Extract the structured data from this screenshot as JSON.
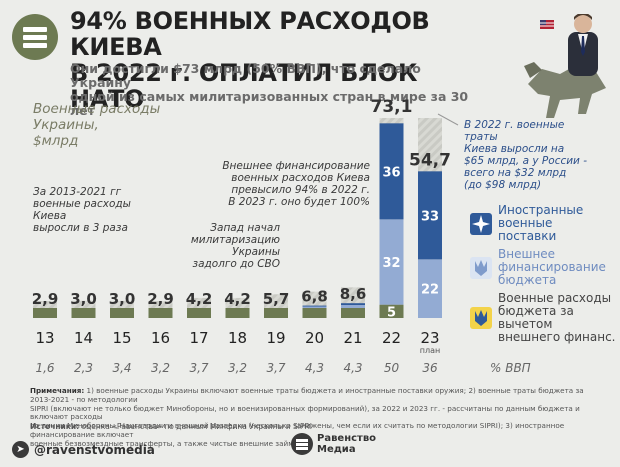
{
  "header": {
    "title_line1": "94% ВОЕННЫХ РАСХОДОВ КИЕВА",
    "title_line2": "В 2022 г. ОПЛАТИЛ БЛОК НАТО",
    "subtitle_line1": "Они достигли $73 млрд (50% ВВП), что сделало Украину",
    "subtitle_line2": "одной из самых милитаризованных стран в мире за 30 лет"
  },
  "colors": {
    "nato": "#2f5a99",
    "external": "#93abd3",
    "domestic": "#6d7a52",
    "stripe": "#c9cac4",
    "accent_text": "#2c4f8a"
  },
  "annotations": {
    "left_1": "За 2013-2021 гг",
    "left_2": "военные расходы Киева",
    "left_3": "выросли в 3 раза",
    "mid_1": "Запад начал",
    "mid_2": "милитаризацию Украины",
    "mid_3": "задолго до СВО",
    "ext_1": "Внешнее финансирование",
    "ext_2": "военных расходов Киева",
    "ext_3": "превысило 94% в 2022 г.",
    "ext_4": "В 2023 г. оно будет 100%",
    "box_1": "В 2022 г. военные траты",
    "box_2": "Киева выросли на",
    "box_3": "$65 млрд, а у России -",
    "box_4": "всего на $32 млрд",
    "box_5": "(до $98 млрд)"
  },
  "legend": {
    "nato_1": "Иностранные",
    "nato_2": "военные",
    "nato_3": "поставки",
    "ext_1": "Внешнее",
    "ext_2": "финансирование",
    "ext_3": "бюджета",
    "dom_1": "Военные расходы",
    "dom_2": "бюджета за вычетом",
    "dom_3": "внешнего финанс."
  },
  "footer": {
    "notes_label": "Примечания:",
    "notes_1": " 1) военные расходы Украины включают военные траты бюджета и иностранные поставки оружия; 2) военные траты бюджета за 2013-2021 - по методологии",
    "notes_2": "SIPRI (включают не только бюджет Минобороны, но и военизированных формирований), за 2022 и 2023 гг. - рассчитаны по данным бюджета и включают расходы",
    "notes_3": "по линии Минобороны, Нацгвардии и внешней разведки (несколько занижены, чем если их считать по методологии SIPRI); 3) иностранное финансирование включает",
    "notes_4": "военные безвозмездные трансферты, а также чистые внешние займы.",
    "source_label": "Источники:",
    "source_text": " оценка «Равенства» по данным Минфина Украины и SIPRI",
    "telegram": "@ravenstvomedia",
    "brand_1": "Равенство",
    "brand_2": "Медиа"
  },
  "chart_data": {
    "type": "bar",
    "title": "Военные расходы Украины,",
    "ylabel": "$млрд",
    "categories": [
      "13",
      "14",
      "15",
      "16",
      "17",
      "18",
      "19",
      "20",
      "21",
      "22",
      "23"
    ],
    "category_sub": [
      "",
      "",
      "",
      "",
      "",
      "",
      "",
      "",
      "",
      "",
      "план"
    ],
    "totals": [
      "2,9",
      "3,0",
      "3,0",
      "2,9",
      "4,2",
      "4,2",
      "5,7",
      "6,8",
      "8,6",
      "73,1",
      "54,7"
    ],
    "series": [
      {
        "name": "Военные расходы бюджета за вычетом внешнего финанс.",
        "values": [
          2.9,
          3.0,
          3.0,
          2.9,
          4.2,
          4.2,
          5.7,
          6.0,
          7.0,
          5.0,
          0
        ]
      },
      {
        "name": "Внешнее финансирование бюджета",
        "values": [
          0,
          0,
          0,
          0,
          0,
          0,
          0,
          0.5,
          1.0,
          32,
          22
        ]
      },
      {
        "name": "Иностранные военные поставки",
        "values": [
          0,
          0,
          0,
          0,
          0,
          0,
          0,
          0.3,
          0.6,
          36,
          33
        ]
      }
    ],
    "segment_labels": [
      {
        "index": 9,
        "series": 0,
        "text": "5"
      },
      {
        "index": 9,
        "series": 1,
        "text": "32"
      },
      {
        "index": 9,
        "series": 2,
        "text": "36"
      },
      {
        "index": 10,
        "series": 1,
        "text": "22"
      },
      {
        "index": 10,
        "series": 2,
        "text": "33"
      }
    ],
    "gdp_label": "% ВВП",
    "gdp": [
      "1,6",
      "2,3",
      "3,4",
      "3,2",
      "3,7",
      "3,2",
      "3,7",
      "4,3",
      "4,3",
      "50",
      "36"
    ],
    "ylim": [
      0,
      75
    ],
    "grid": false,
    "legend_position": "right"
  }
}
